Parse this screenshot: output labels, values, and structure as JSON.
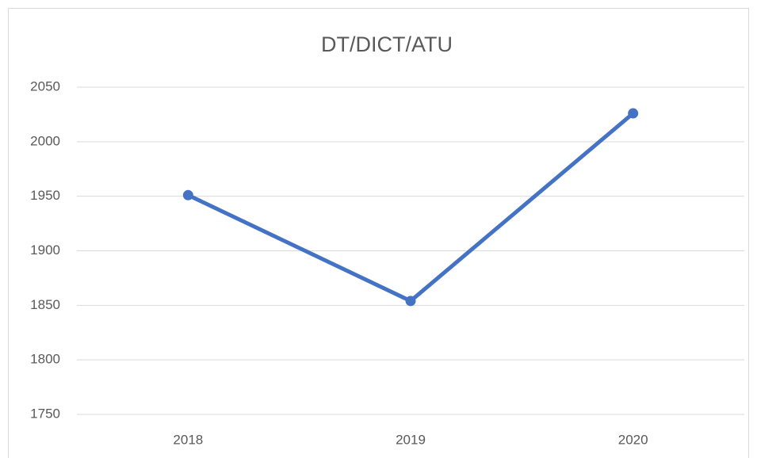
{
  "chart_data": {
    "type": "line",
    "title": "DT/DICT/ATU",
    "categories": [
      "2018",
      "2019",
      "2020"
    ],
    "series": [
      {
        "name": "DT/DICT/ATU",
        "color": "#4472c4",
        "values": [
          1951,
          1854,
          2026
        ]
      }
    ],
    "ylim": [
      1750,
      2050
    ],
    "yticks": [
      1750,
      1800,
      1850,
      1900,
      1950,
      2000,
      2050
    ],
    "grid": true
  }
}
